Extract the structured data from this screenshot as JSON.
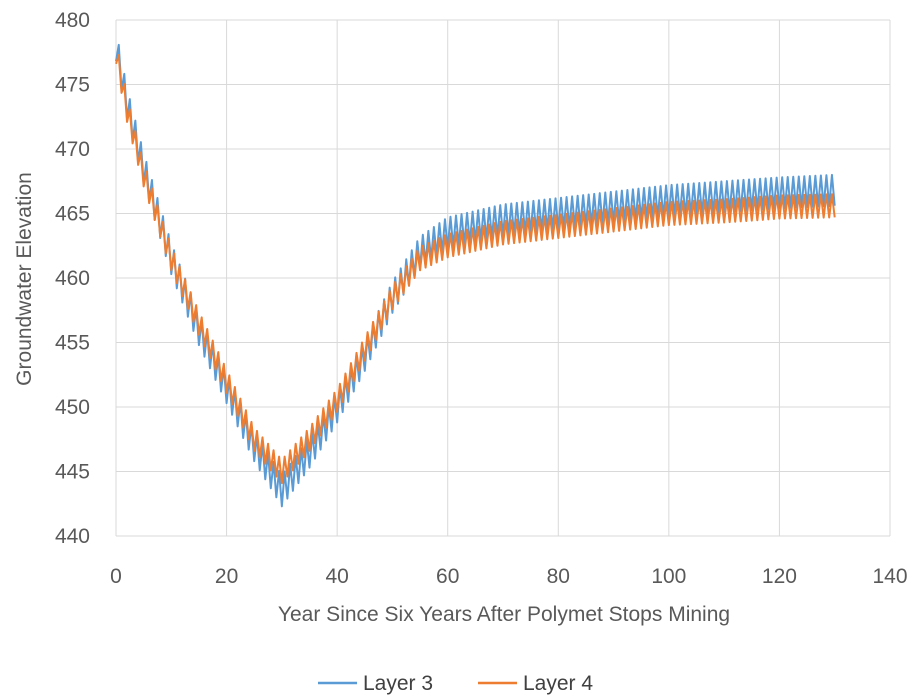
{
  "chart_data": {
    "type": "line",
    "title": "",
    "xlabel": "Year Since Six Years After Polymet Stops Mining",
    "ylabel": "Groundwater Elevation",
    "xlim": [
      0,
      140
    ],
    "ylim": [
      440,
      480
    ],
    "x_ticks": [
      "0",
      "20",
      "40",
      "60",
      "80",
      "100",
      "120",
      "140"
    ],
    "y_ticks": [
      "440",
      "445",
      "450",
      "455",
      "460",
      "465",
      "470",
      "475",
      "480"
    ],
    "grid": "vertical and horizontal major gridlines",
    "legend_position": "bottom",
    "series": [
      {
        "name": "Layer 3",
        "color": "#5B9BD5",
        "trend_points": [
          [
            0,
            478
          ],
          [
            2,
            473.5
          ],
          [
            5,
            468.5
          ],
          [
            10,
            461.5
          ],
          [
            15,
            456
          ],
          [
            20,
            451.5
          ],
          [
            25,
            447
          ],
          [
            30,
            443.5
          ],
          [
            35,
            446.5
          ],
          [
            40,
            450
          ],
          [
            45,
            454
          ],
          [
            50,
            458.5
          ],
          [
            55,
            462
          ],
          [
            60,
            463.5
          ],
          [
            70,
            464.5
          ],
          [
            80,
            465
          ],
          [
            90,
            465.5
          ],
          [
            100,
            466
          ],
          [
            110,
            466.3
          ],
          [
            120,
            466.6
          ],
          [
            130,
            466.8
          ]
        ],
        "seasonal_amplitude": 1.2
      },
      {
        "name": "Layer 4",
        "color": "#ED7D31",
        "trend_points": [
          [
            0,
            477.5
          ],
          [
            2,
            473
          ],
          [
            5,
            468
          ],
          [
            10,
            461.5
          ],
          [
            15,
            456.5
          ],
          [
            20,
            452
          ],
          [
            25,
            447.5
          ],
          [
            30,
            445
          ],
          [
            35,
            447.5
          ],
          [
            40,
            450.5
          ],
          [
            45,
            454.5
          ],
          [
            50,
            458.5
          ],
          [
            55,
            461.5
          ],
          [
            60,
            462.5
          ],
          [
            70,
            463.5
          ],
          [
            80,
            464
          ],
          [
            90,
            464.5
          ],
          [
            100,
            465
          ],
          [
            110,
            465.2
          ],
          [
            120,
            465.5
          ],
          [
            130,
            465.6
          ]
        ],
        "seasonal_amplitude": 0.9
      }
    ]
  }
}
